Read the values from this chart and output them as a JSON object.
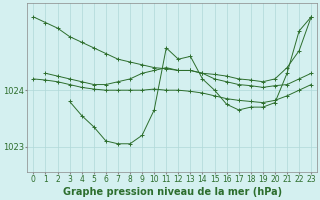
{
  "bg_color": "#d4f0f0",
  "grid_color": "#b0d8d8",
  "line_color": "#2d6e2d",
  "marker_color": "#2d6e2d",
  "xlabel": "Graphe pression niveau de la mer (hPa)",
  "xlabel_fontsize": 7.0,
  "tick_fontsize": 5.5,
  "ytick_fontsize": 6.0,
  "yticks": [
    1023,
    1024
  ],
  "ylim": [
    1022.55,
    1025.55
  ],
  "xlim": [
    -0.5,
    23.5
  ],
  "xticks": [
    0,
    1,
    2,
    3,
    4,
    5,
    6,
    7,
    8,
    9,
    10,
    11,
    12,
    13,
    14,
    15,
    16,
    17,
    18,
    19,
    20,
    21,
    22,
    23
  ],
  "lines": [
    {
      "x": [
        0,
        1,
        2,
        3,
        4,
        5,
        6,
        7,
        8,
        9,
        10,
        11,
        12,
        13,
        14,
        15,
        16,
        17,
        18,
        19,
        20,
        21,
        22,
        23
      ],
      "y": [
        1025.3,
        1025.2,
        1025.1,
        1024.95,
        1024.85,
        1024.75,
        1024.65,
        1024.55,
        1024.5,
        1024.45,
        1024.4,
        1024.38,
        1024.35,
        1024.35,
        1024.3,
        1024.28,
        1024.25,
        1024.2,
        1024.18,
        1024.15,
        1024.2,
        1024.4,
        1024.7,
        1025.3
      ]
    },
    {
      "x": [
        1,
        2,
        3,
        4,
        5,
        6,
        7,
        8,
        9,
        10,
        11,
        12,
        13,
        14,
        15,
        16,
        17,
        18,
        19,
        20,
        21,
        22,
        23
      ],
      "y": [
        1024.3,
        1024.25,
        1024.2,
        1024.15,
        1024.1,
        1024.1,
        1024.15,
        1024.2,
        1024.3,
        1024.35,
        1024.4,
        1024.35,
        1024.35,
        1024.3,
        1024.2,
        1024.15,
        1024.1,
        1024.08,
        1024.05,
        1024.08,
        1024.1,
        1024.2,
        1024.3
      ]
    },
    {
      "x": [
        0,
        1,
        2,
        3,
        4,
        5,
        6,
        7,
        8,
        9,
        10,
        11,
        12,
        13,
        14,
        15,
        16,
        17,
        18,
        19,
        20,
        21,
        22,
        23
      ],
      "y": [
        1024.2,
        1024.18,
        1024.15,
        1024.1,
        1024.05,
        1024.02,
        1024.0,
        1024.0,
        1024.0,
        1024.0,
        1024.02,
        1024.0,
        1024.0,
        1023.98,
        1023.95,
        1023.9,
        1023.85,
        1023.82,
        1023.8,
        1023.78,
        1023.82,
        1023.9,
        1024.0,
        1024.1
      ]
    },
    {
      "x": [
        3,
        4,
        5,
        6,
        7,
        8,
        9,
        10,
        11,
        12,
        13,
        14,
        15,
        16,
        17,
        18,
        19,
        20,
        21,
        22,
        23
      ],
      "y": [
        1023.8,
        1023.55,
        1023.35,
        1023.1,
        1023.05,
        1023.05,
        1023.2,
        1023.65,
        1024.75,
        1024.55,
        1024.6,
        1024.2,
        1024.0,
        1023.75,
        1023.65,
        1023.7,
        1023.7,
        1023.78,
        1024.3,
        1025.05,
        1025.3
      ]
    }
  ]
}
